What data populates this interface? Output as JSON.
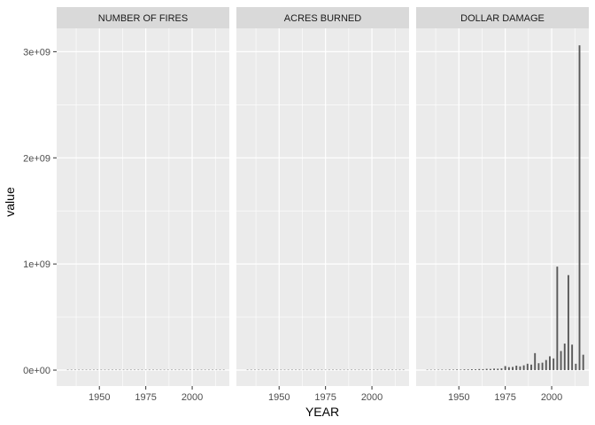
{
  "chart_data": {
    "type": "bar",
    "facet_by": "variable",
    "xlabel": "YEAR",
    "ylabel": "value",
    "ylim": [
      -150000000,
      3220000000
    ],
    "xlim": [
      1927,
      2020
    ],
    "y_ticks": [
      0,
      1000000000,
      2000000000,
      3000000000
    ],
    "y_tick_labels": [
      "0e+00",
      "1e+09",
      "2e+09",
      "3e+09"
    ],
    "x_ticks": [
      1950,
      1975,
      2000
    ],
    "x_tick_labels": [
      "1950",
      "1975",
      "2000"
    ],
    "grid": true,
    "legend": "none",
    "colors": {
      "panel_bg": "#ebebeb",
      "strip_bg": "#d9d9d9",
      "grid": "#ffffff",
      "bar": "#595959",
      "text": "#4d4d4d",
      "title": "#000000"
    },
    "panels": [
      {
        "label": "NUMBER OF FIRES",
        "x": [
          1933,
          1935,
          1937,
          1939,
          1941,
          1943,
          1945,
          1947,
          1949,
          1951,
          1953,
          1955,
          1957,
          1959,
          1961,
          1963,
          1965,
          1967,
          1969,
          1971,
          1973,
          1975,
          1977,
          1979,
          1981,
          1983,
          1985,
          1987,
          1989,
          1991,
          1993,
          1995,
          1997,
          1999,
          2001,
          2003,
          2005,
          2007,
          2009,
          2011,
          2013,
          2015,
          2017
        ],
        "values": [
          150,
          140,
          160,
          150,
          170,
          160,
          180,
          170,
          190,
          180,
          200,
          210,
          190,
          220,
          230,
          210,
          240,
          250,
          230,
          260,
          270,
          300,
          280,
          290,
          310,
          320,
          300,
          330,
          340,
          320,
          350,
          360,
          340,
          370,
          380,
          360,
          390,
          400,
          370,
          360,
          350,
          340,
          330
        ]
      },
      {
        "label": "ACRES BURNED",
        "x": [
          1933,
          1935,
          1937,
          1939,
          1941,
          1943,
          1945,
          1947,
          1949,
          1951,
          1953,
          1955,
          1957,
          1959,
          1961,
          1963,
          1965,
          1967,
          1969,
          1971,
          1973,
          1975,
          1977,
          1979,
          1981,
          1983,
          1985,
          1987,
          1989,
          1991,
          1993,
          1995,
          1997,
          1999,
          2001,
          2003,
          2005,
          2007,
          2009,
          2011,
          2013,
          2015,
          2017
        ],
        "values": [
          200000,
          180000,
          250000,
          220000,
          300000,
          270000,
          240000,
          310000,
          290000,
          260000,
          330000,
          300000,
          280000,
          350000,
          320000,
          290000,
          360000,
          330000,
          310000,
          380000,
          350000,
          400000,
          370000,
          420000,
          390000,
          450000,
          430000,
          500000,
          470000,
          520000,
          540000,
          500000,
          560000,
          600000,
          580000,
          900000,
          640000,
          1000000,
          700000,
          650000,
          720000,
          800000,
          1300000
        ]
      },
      {
        "label": "DOLLAR DAMAGE",
        "x": [
          1933,
          1935,
          1937,
          1939,
          1941,
          1943,
          1945,
          1947,
          1949,
          1951,
          1953,
          1955,
          1957,
          1959,
          1961,
          1963,
          1965,
          1967,
          1969,
          1971,
          1973,
          1975,
          1977,
          1979,
          1981,
          1983,
          1985,
          1987,
          1989,
          1991,
          1993,
          1995,
          1997,
          1999,
          2001,
          2003,
          2005,
          2007,
          2009,
          2011,
          2013,
          2015,
          2017
        ],
        "values": [
          2000000,
          3000000,
          2500000,
          3500000,
          4000000,
          3000000,
          5000000,
          4500000,
          6000000,
          5000000,
          7000000,
          6500000,
          8000000,
          7500000,
          10000000,
          9000000,
          12000000,
          11000000,
          14000000,
          13000000,
          16000000,
          38000000,
          28000000,
          30000000,
          42000000,
          35000000,
          45000000,
          60000000,
          52000000,
          160000000,
          65000000,
          70000000,
          95000000,
          130000000,
          110000000,
          975000000,
          180000000,
          250000000,
          895000000,
          240000000,
          60000000,
          3060000000,
          145000000
        ]
      }
    ]
  }
}
